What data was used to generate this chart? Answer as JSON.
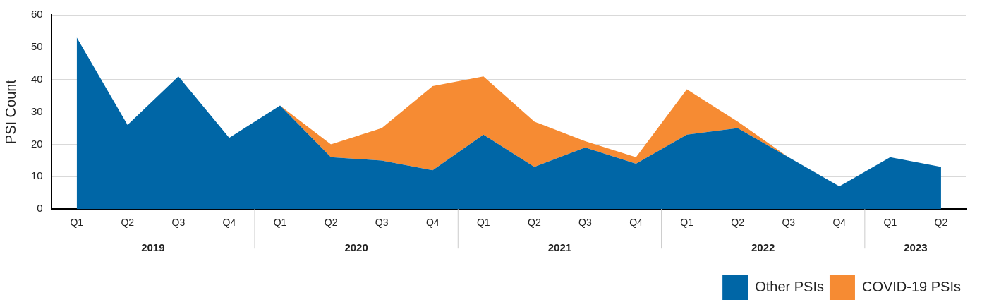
{
  "chart_data": {
    "type": "area",
    "stacked": true,
    "ylabel": "PSI Count",
    "categories": [
      "Q1",
      "Q2",
      "Q3",
      "Q4",
      "Q1",
      "Q2",
      "Q3",
      "Q4",
      "Q1",
      "Q2",
      "Q3",
      "Q4",
      "Q1",
      "Q2",
      "Q3",
      "Q4",
      "Q1",
      "Q2"
    ],
    "annotations": [
      "2019",
      "2020",
      "2021",
      "2022",
      "2023"
    ],
    "series": [
      {
        "name": "Other PSIs",
        "color": "#0066a6",
        "values": [
          53,
          26,
          41,
          22,
          32,
          16,
          15,
          12,
          23,
          13,
          19,
          14,
          23,
          25,
          16,
          7,
          16,
          13
        ]
      },
      {
        "name": "COVID-19 PSIs",
        "color": "#f68b33",
        "values": [
          null,
          null,
          null,
          null,
          0,
          4,
          10,
          26,
          18,
          14,
          2,
          2,
          14,
          2,
          0,
          null,
          null,
          null
        ]
      }
    ],
    "ylim": [
      0,
      60
    ],
    "yticks": [
      0,
      10,
      20,
      30,
      40,
      50,
      60
    ],
    "grid": "y",
    "legend": "bottom right"
  }
}
